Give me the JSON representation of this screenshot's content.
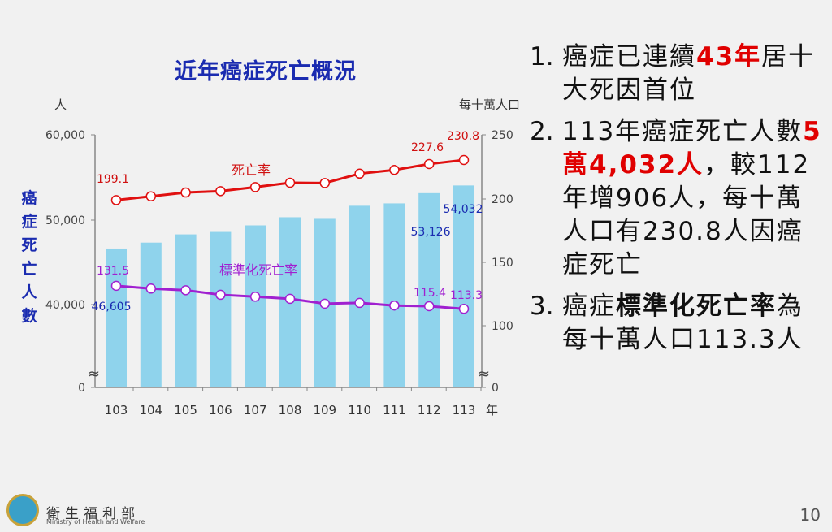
{
  "chart_data": {
    "type": "bar+line",
    "title": "近年癌症死亡概況",
    "left_axis": {
      "label": "癌症死亡人數",
      "unit": "人",
      "ticks": [
        "0",
        "40,000",
        "50,000",
        "60,000"
      ],
      "range": [
        40000,
        60000
      ],
      "break": true
    },
    "right_axis": {
      "unit": "每十萬人口",
      "ticks": [
        "0",
        "100",
        "150",
        "200",
        "250"
      ],
      "range": [
        0,
        250
      ],
      "break": true
    },
    "x_unit": "年",
    "categories": [
      "103",
      "104",
      "105",
      "106",
      "107",
      "108",
      "109",
      "110",
      "111",
      "112",
      "113"
    ],
    "series": [
      {
        "name": "癌症死亡人數",
        "type": "bar",
        "axis": "left",
        "color": "#8fd3ec",
        "values": [
          46605,
          47300,
          48270,
          48560,
          49330,
          50290,
          50100,
          51640,
          51920,
          53126,
          54032
        ],
        "labels": {
          "0": "46,605",
          "9": "53,126",
          "10": "54,032"
        }
      },
      {
        "name": "死亡率",
        "type": "line",
        "axis": "right",
        "color": "#e01010",
        "values": [
          199.1,
          202.1,
          205.1,
          206.2,
          209.4,
          212.8,
          212.6,
          220.0,
          222.9,
          227.6,
          230.8
        ],
        "labels": {
          "0": "199.1",
          "9": "227.6",
          "10": "230.8"
        }
      },
      {
        "name": "標準化死亡率",
        "type": "line",
        "axis": "right",
        "color": "#a020d0",
        "values": [
          131.5,
          129.3,
          128.0,
          124.4,
          122.9,
          121.2,
          117.4,
          118.0,
          115.9,
          115.4,
          113.3
        ],
        "labels": {
          "0": "131.5",
          "9": "115.4",
          "10": "113.3"
        }
      }
    ]
  },
  "points": [
    {
      "num": "1.",
      "parts": [
        {
          "t": "癌症已連續",
          "c": ""
        },
        {
          "t": "43年",
          "c": "red"
        },
        {
          "t": "居十大死因首位",
          "c": ""
        }
      ]
    },
    {
      "num": "2.",
      "parts": [
        {
          "t": "113年癌症死亡人數",
          "c": ""
        },
        {
          "t": "5萬4,032人",
          "c": "red"
        },
        {
          "t": "，較112年增906人，每十萬人口有230.8人因癌症死亡",
          "c": ""
        }
      ]
    },
    {
      "num": "3.",
      "parts": [
        {
          "t": "癌症",
          "c": ""
        },
        {
          "t": "標準化死亡率",
          "c": "bold"
        },
        {
          "t": "為每十萬人口113.3人",
          "c": ""
        }
      ]
    }
  ],
  "footer": {
    "org_zh": "衛生福利部",
    "org_en": "Ministry of Health and Welfare",
    "page": "10"
  }
}
